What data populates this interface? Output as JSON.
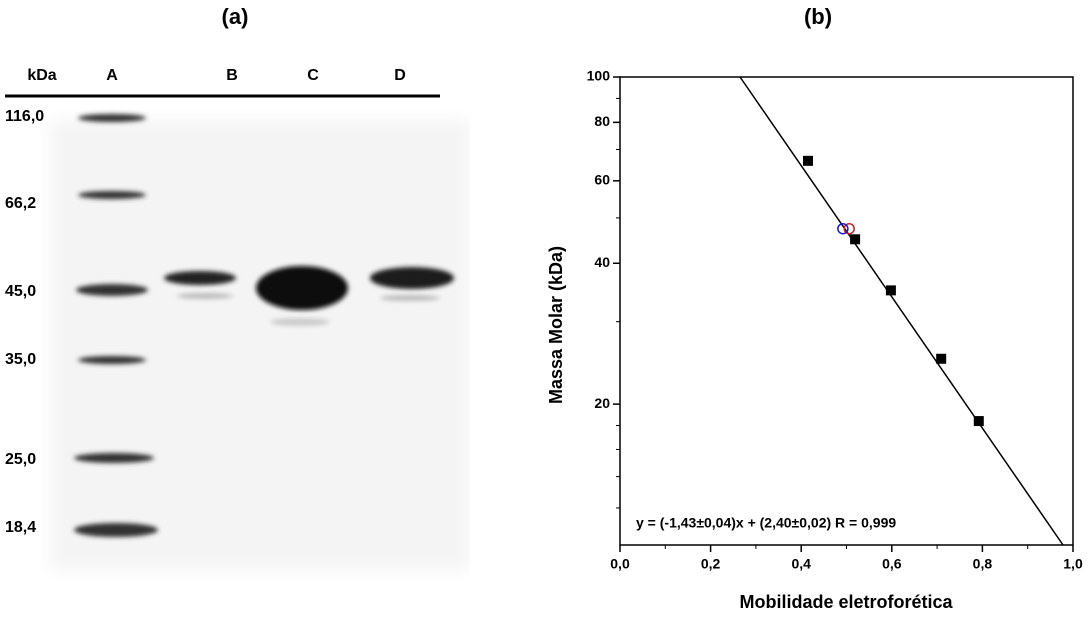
{
  "gel": {
    "title": "(a)",
    "unit": "kDa",
    "lanes": [
      "A",
      "B",
      "C",
      "D"
    ],
    "markers": [
      "116,0",
      "66,2",
      "45,0",
      "35,0",
      "25,0",
      "18,4"
    ]
  },
  "chart_data": {
    "type": "scatter",
    "title": "(b)",
    "x_label": "Mobilidade eletroforética",
    "y_label": "Massa Molar (kDa)",
    "annotation": "y = (-1,43±0,04)x + (2,40±0,02)  R = 0,999",
    "xlim": [
      0,
      1
    ],
    "ylim": [
      10,
      100
    ],
    "y_scale": "log",
    "xticks": [
      {
        "value": 0,
        "label": "0,0"
      },
      {
        "value": 0.2,
        "label": "0,2"
      },
      {
        "value": 0.4,
        "label": "0,4"
      },
      {
        "value": 0.6,
        "label": "0,6"
      },
      {
        "value": 0.8,
        "label": "0,8"
      },
      {
        "value": 1,
        "label": "1,0"
      }
    ],
    "xminorticks": [
      0.1,
      0.3,
      0.5,
      0.7,
      0.9
    ],
    "yticks": [
      20,
      40,
      60,
      80,
      100
    ],
    "yminorticks": [
      12,
      14,
      16,
      18,
      30,
      50,
      70,
      90
    ],
    "series": [
      {
        "marker": "line",
        "color": "#000000",
        "x": [
          0.265,
          0.978
        ],
        "values": [
          100,
          10
        ]
      },
      {
        "marker": "square",
        "color": "#000000",
        "x": [
          0.415,
          0.519,
          0.598,
          0.709,
          0.792
        ],
        "values": [
          66.2,
          45.0,
          35.0,
          25.0,
          18.4
        ]
      },
      {
        "marker": "circle",
        "color": "#cc2222",
        "x": [
          0.506
        ],
        "values": [
          47.4
        ]
      },
      {
        "marker": "circle",
        "color": "#1a1acc",
        "x": [
          0.492
        ],
        "values": [
          47.4
        ]
      }
    ]
  }
}
